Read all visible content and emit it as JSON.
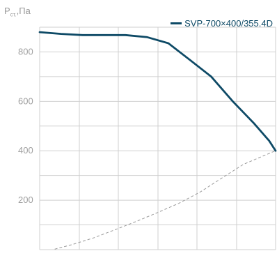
{
  "chart_data": {
    "type": "line",
    "ylabel_main": "P",
    "ylabel_sub": "ст.",
    "ylabel_unit": ",Па",
    "ylim": [
      0,
      900
    ],
    "y_ticks": [
      200,
      400,
      600,
      800
    ],
    "xlim": [
      0,
      11
    ],
    "grid": true,
    "legend_position": "top-right",
    "colors": {
      "series": "#0e4a66",
      "system": "#9a9a9a",
      "grid": "#cfcfcf"
    },
    "series": [
      {
        "name": "SVP-700×400/355.4D",
        "style": "solid",
        "x": [
          0,
          1,
          2,
          3,
          4,
          5,
          6,
          7,
          8,
          9,
          10,
          10.7,
          11
        ],
        "y": [
          880,
          873,
          868,
          868,
          868,
          860,
          835,
          768,
          700,
          600,
          510,
          440,
          400
        ]
      },
      {
        "name": "",
        "style": "dashed",
        "x": [
          0.7,
          1.5,
          2.5,
          3.5,
          4.5,
          5.5,
          6.5,
          7.5,
          8.5,
          9.5,
          10.5,
          11
        ],
        "y": [
          2,
          20,
          47,
          80,
          114,
          150,
          188,
          234,
          290,
          345,
          382,
          400
        ]
      }
    ]
  }
}
